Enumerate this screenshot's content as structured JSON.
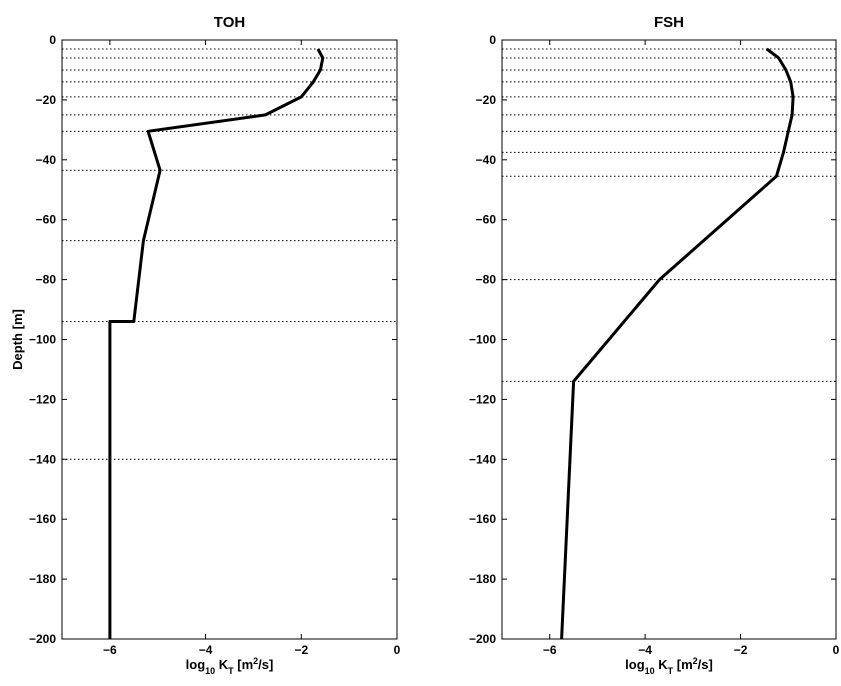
{
  "chart_data": [
    {
      "type": "line",
      "title": "TOH",
      "xlabel_base": "log",
      "xlabel_sub": "10",
      "xlabel_mid": " K",
      "xlabel_sub2": "T",
      "xlabel_pre_sup": " [m",
      "xlabel_sup": "2",
      "xlabel_post": "/s]",
      "ylabel": "Depth [m]",
      "xlim": [
        -7,
        0
      ],
      "ylim": [
        -200,
        0
      ],
      "xticks": [
        -6,
        -4,
        -2,
        0
      ],
      "yticks": [
        0,
        -20,
        -40,
        -60,
        -80,
        -100,
        -120,
        -140,
        -160,
        -180,
        -200
      ],
      "xtick_labels": [
        "−6",
        "−4",
        "−2",
        "0"
      ],
      "ytick_labels": [
        "0",
        "−20",
        "−40",
        "−60",
        "−80",
        "−100",
        "−120",
        "−140",
        "−160",
        "−180",
        "−200"
      ],
      "reference_depths": [
        -3,
        -6,
        -10,
        -14,
        -19,
        -25,
        -30.5,
        -43.5,
        -67,
        -94,
        -140
      ],
      "series": [
        {
          "x": [
            -1.65,
            -1.55,
            -1.6,
            -1.75,
            -2.0,
            -2.75,
            -5.2,
            -4.95,
            -5.3,
            -5.5,
            -6.0,
            -6.0,
            -6.0
          ],
          "y": [
            -3,
            -6,
            -10,
            -14,
            -19,
            -25,
            -30.5,
            -43.5,
            -67,
            -94,
            -94,
            -140,
            -200
          ]
        }
      ]
    },
    {
      "type": "line",
      "title": "FSH",
      "xlabel_base": "log",
      "xlabel_sub": "10",
      "xlabel_mid": " K",
      "xlabel_sub2": "T",
      "xlabel_pre_sup": " [m",
      "xlabel_sup": "2",
      "xlabel_post": "/s]",
      "ylabel": "",
      "xlim": [
        -7,
        0
      ],
      "ylim": [
        -200,
        0
      ],
      "xticks": [
        -6,
        -4,
        -2,
        0
      ],
      "yticks": [
        0,
        -20,
        -40,
        -60,
        -80,
        -100,
        -120,
        -140,
        -160,
        -180,
        -200
      ],
      "xtick_labels": [
        "−6",
        "−4",
        "−2",
        "0"
      ],
      "ytick_labels": [
        "0",
        "−20",
        "−40",
        "−60",
        "−80",
        "−100",
        "−120",
        "−140",
        "−160",
        "−180",
        "−200"
      ],
      "reference_depths": [
        -3,
        -6,
        -10,
        -14,
        -19,
        -25,
        -30.5,
        -37.5,
        -45.5,
        -80,
        -114
      ],
      "series": [
        {
          "x": [
            -1.45,
            -1.2,
            -1.05,
            -0.95,
            -0.9,
            -0.92,
            -1.0,
            -1.1,
            -1.25,
            -3.7,
            -5.5,
            -5.75
          ],
          "y": [
            -3,
            -6,
            -10,
            -14,
            -19,
            -25,
            -30.5,
            -37.5,
            -45.5,
            -80,
            -114,
            -200
          ]
        }
      ]
    }
  ]
}
